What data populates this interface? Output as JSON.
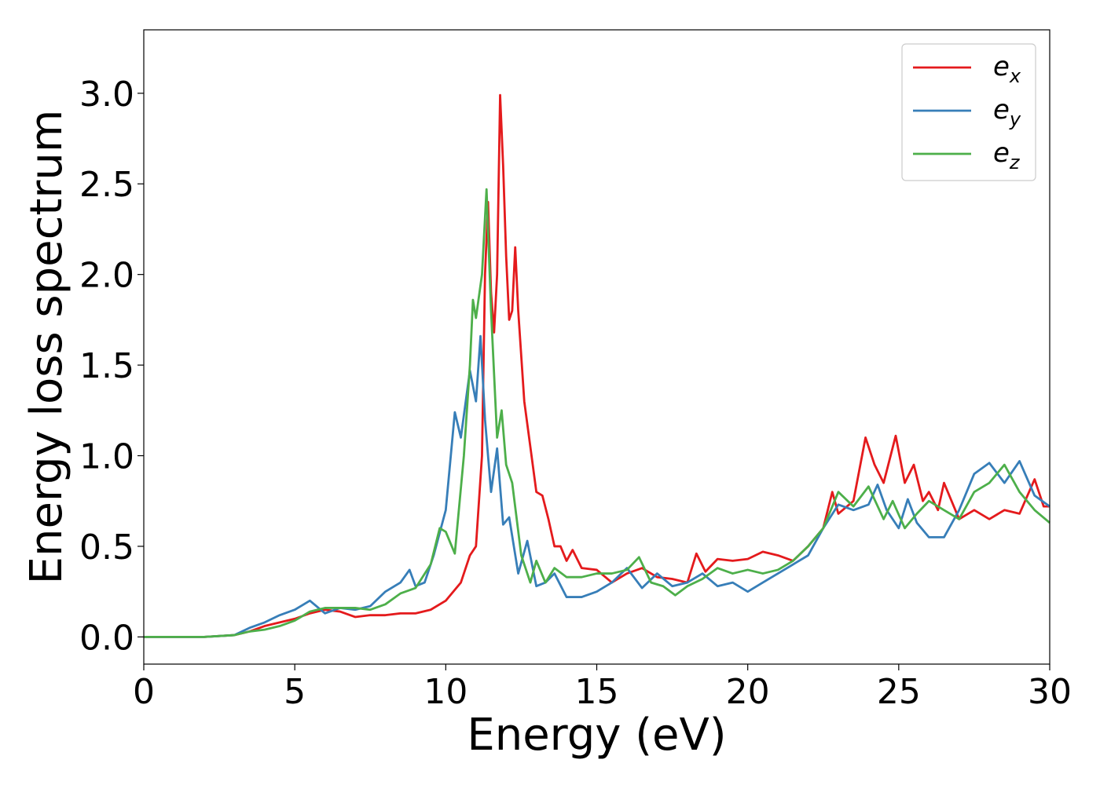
{
  "chart_data": {
    "type": "line",
    "title": "",
    "xlabel": "Energy (eV)",
    "ylabel": "Energy loss spectrum",
    "xlim": [
      0,
      30
    ],
    "ylim": [
      -0.15,
      3.35
    ],
    "xticks": [
      0,
      5,
      10,
      15,
      20,
      25,
      30
    ],
    "xtick_labels": [
      "0",
      "5",
      "10",
      "15",
      "20",
      "25",
      "30"
    ],
    "yticks": [
      0.0,
      0.5,
      1.0,
      1.5,
      2.0,
      2.5,
      3.0
    ],
    "ytick_labels": [
      "0.0",
      "0.5",
      "1.0",
      "1.5",
      "2.0",
      "2.5",
      "3.0"
    ],
    "grid": false,
    "legend_position": "top-right",
    "series": [
      {
        "name": "e_x",
        "label_base": "e",
        "label_sub": "x",
        "color": "#e41a1c",
        "points": [
          [
            0,
            0
          ],
          [
            2,
            0
          ],
          [
            3,
            0.01
          ],
          [
            3.5,
            0.03
          ],
          [
            4,
            0.06
          ],
          [
            4.5,
            0.08
          ],
          [
            5,
            0.1
          ],
          [
            5.5,
            0.13
          ],
          [
            6,
            0.15
          ],
          [
            6.5,
            0.14
          ],
          [
            7,
            0.11
          ],
          [
            7.5,
            0.12
          ],
          [
            8,
            0.12
          ],
          [
            8.5,
            0.13
          ],
          [
            9,
            0.13
          ],
          [
            9.5,
            0.15
          ],
          [
            10,
            0.2
          ],
          [
            10.5,
            0.3
          ],
          [
            10.8,
            0.45
          ],
          [
            11,
            0.5
          ],
          [
            11.2,
            1.0
          ],
          [
            11.3,
            2.0
          ],
          [
            11.4,
            2.4
          ],
          [
            11.5,
            1.9
          ],
          [
            11.6,
            1.68
          ],
          [
            11.7,
            2.0
          ],
          [
            11.8,
            2.99
          ],
          [
            11.9,
            2.6
          ],
          [
            12.0,
            2.1
          ],
          [
            12.1,
            1.75
          ],
          [
            12.2,
            1.8
          ],
          [
            12.3,
            2.15
          ],
          [
            12.4,
            1.8
          ],
          [
            12.6,
            1.3
          ],
          [
            12.8,
            1.05
          ],
          [
            13.0,
            0.8
          ],
          [
            13.2,
            0.78
          ],
          [
            13.4,
            0.65
          ],
          [
            13.6,
            0.5
          ],
          [
            13.8,
            0.5
          ],
          [
            14,
            0.42
          ],
          [
            14.2,
            0.48
          ],
          [
            14.5,
            0.38
          ],
          [
            15,
            0.37
          ],
          [
            15.5,
            0.3
          ],
          [
            16,
            0.35
          ],
          [
            16.5,
            0.38
          ],
          [
            17,
            0.33
          ],
          [
            17.5,
            0.32
          ],
          [
            18,
            0.3
          ],
          [
            18.3,
            0.46
          ],
          [
            18.6,
            0.36
          ],
          [
            19,
            0.43
          ],
          [
            19.5,
            0.42
          ],
          [
            20,
            0.43
          ],
          [
            20.5,
            0.47
          ],
          [
            21,
            0.45
          ],
          [
            21.5,
            0.42
          ],
          [
            22,
            0.5
          ],
          [
            22.5,
            0.6
          ],
          [
            22.8,
            0.8
          ],
          [
            23,
            0.68
          ],
          [
            23.5,
            0.75
          ],
          [
            23.9,
            1.1
          ],
          [
            24.2,
            0.95
          ],
          [
            24.5,
            0.85
          ],
          [
            24.9,
            1.11
          ],
          [
            25.2,
            0.85
          ],
          [
            25.5,
            0.95
          ],
          [
            25.8,
            0.75
          ],
          [
            26,
            0.8
          ],
          [
            26.3,
            0.7
          ],
          [
            26.5,
            0.85
          ],
          [
            27,
            0.65
          ],
          [
            27.5,
            0.7
          ],
          [
            28,
            0.65
          ],
          [
            28.5,
            0.7
          ],
          [
            29,
            0.68
          ],
          [
            29.5,
            0.87
          ],
          [
            29.8,
            0.72
          ],
          [
            30,
            0.72
          ]
        ]
      },
      {
        "name": "e_y",
        "label_base": "e",
        "label_sub": "y",
        "color": "#377eb8",
        "points": [
          [
            0,
            0
          ],
          [
            2,
            0
          ],
          [
            3,
            0.01
          ],
          [
            3.5,
            0.05
          ],
          [
            4,
            0.08
          ],
          [
            4.5,
            0.12
          ],
          [
            5,
            0.15
          ],
          [
            5.5,
            0.2
          ],
          [
            6,
            0.13
          ],
          [
            6.5,
            0.16
          ],
          [
            7,
            0.15
          ],
          [
            7.5,
            0.17
          ],
          [
            8,
            0.25
          ],
          [
            8.5,
            0.3
          ],
          [
            8.8,
            0.37
          ],
          [
            9,
            0.28
          ],
          [
            9.3,
            0.3
          ],
          [
            9.6,
            0.45
          ],
          [
            10,
            0.7
          ],
          [
            10.3,
            1.24
          ],
          [
            10.5,
            1.1
          ],
          [
            10.8,
            1.47
          ],
          [
            11,
            1.3
          ],
          [
            11.15,
            1.66
          ],
          [
            11.3,
            1.2
          ],
          [
            11.5,
            0.8
          ],
          [
            11.7,
            1.04
          ],
          [
            11.9,
            0.62
          ],
          [
            12.1,
            0.66
          ],
          [
            12.4,
            0.35
          ],
          [
            12.7,
            0.53
          ],
          [
            13,
            0.28
          ],
          [
            13.3,
            0.3
          ],
          [
            13.6,
            0.35
          ],
          [
            14,
            0.22
          ],
          [
            14.5,
            0.22
          ],
          [
            15,
            0.25
          ],
          [
            15.5,
            0.3
          ],
          [
            16,
            0.38
          ],
          [
            16.5,
            0.27
          ],
          [
            17,
            0.35
          ],
          [
            17.5,
            0.28
          ],
          [
            18,
            0.3
          ],
          [
            18.5,
            0.35
          ],
          [
            19,
            0.28
          ],
          [
            19.5,
            0.3
          ],
          [
            20,
            0.25
          ],
          [
            20.5,
            0.3
          ],
          [
            21,
            0.35
          ],
          [
            21.5,
            0.4
          ],
          [
            22,
            0.45
          ],
          [
            22.5,
            0.6
          ],
          [
            23,
            0.73
          ],
          [
            23.5,
            0.7
          ],
          [
            24,
            0.73
          ],
          [
            24.3,
            0.84
          ],
          [
            24.6,
            0.7
          ],
          [
            25,
            0.6
          ],
          [
            25.3,
            0.76
          ],
          [
            25.6,
            0.63
          ],
          [
            26,
            0.55
          ],
          [
            26.5,
            0.55
          ],
          [
            27,
            0.7
          ],
          [
            27.5,
            0.9
          ],
          [
            28,
            0.96
          ],
          [
            28.5,
            0.85
          ],
          [
            29,
            0.97
          ],
          [
            29.5,
            0.78
          ],
          [
            30,
            0.72
          ]
        ]
      },
      {
        "name": "e_z",
        "label_base": "e",
        "label_sub": "z",
        "color": "#4daf4a",
        "points": [
          [
            0,
            0
          ],
          [
            2,
            0
          ],
          [
            3,
            0.01
          ],
          [
            3.5,
            0.03
          ],
          [
            4,
            0.04
          ],
          [
            4.5,
            0.06
          ],
          [
            5,
            0.09
          ],
          [
            5.5,
            0.14
          ],
          [
            6,
            0.16
          ],
          [
            6.5,
            0.16
          ],
          [
            7,
            0.16
          ],
          [
            7.5,
            0.15
          ],
          [
            8,
            0.18
          ],
          [
            8.5,
            0.24
          ],
          [
            9,
            0.27
          ],
          [
            9.5,
            0.4
          ],
          [
            9.8,
            0.6
          ],
          [
            10,
            0.58
          ],
          [
            10.3,
            0.46
          ],
          [
            10.6,
            1.0
          ],
          [
            10.8,
            1.5
          ],
          [
            10.9,
            1.86
          ],
          [
            11.0,
            1.76
          ],
          [
            11.2,
            2.0
          ],
          [
            11.35,
            2.47
          ],
          [
            11.5,
            1.8
          ],
          [
            11.7,
            1.1
          ],
          [
            11.85,
            1.25
          ],
          [
            12.0,
            0.95
          ],
          [
            12.2,
            0.85
          ],
          [
            12.5,
            0.45
          ],
          [
            12.8,
            0.3
          ],
          [
            13,
            0.42
          ],
          [
            13.3,
            0.3
          ],
          [
            13.6,
            0.38
          ],
          [
            14,
            0.33
          ],
          [
            14.5,
            0.33
          ],
          [
            15,
            0.35
          ],
          [
            15.5,
            0.35
          ],
          [
            16,
            0.37
          ],
          [
            16.4,
            0.44
          ],
          [
            16.8,
            0.3
          ],
          [
            17.2,
            0.28
          ],
          [
            17.6,
            0.23
          ],
          [
            18,
            0.28
          ],
          [
            18.5,
            0.32
          ],
          [
            19,
            0.38
          ],
          [
            19.5,
            0.35
          ],
          [
            20,
            0.37
          ],
          [
            20.5,
            0.35
          ],
          [
            21,
            0.37
          ],
          [
            21.5,
            0.42
          ],
          [
            22,
            0.5
          ],
          [
            22.5,
            0.6
          ],
          [
            23,
            0.8
          ],
          [
            23.5,
            0.72
          ],
          [
            24,
            0.83
          ],
          [
            24.5,
            0.65
          ],
          [
            24.8,
            0.75
          ],
          [
            25.2,
            0.6
          ],
          [
            25.6,
            0.68
          ],
          [
            26,
            0.75
          ],
          [
            26.5,
            0.7
          ],
          [
            27,
            0.65
          ],
          [
            27.5,
            0.8
          ],
          [
            28,
            0.85
          ],
          [
            28.5,
            0.95
          ],
          [
            29,
            0.8
          ],
          [
            29.5,
            0.7
          ],
          [
            30,
            0.63
          ]
        ]
      }
    ]
  }
}
